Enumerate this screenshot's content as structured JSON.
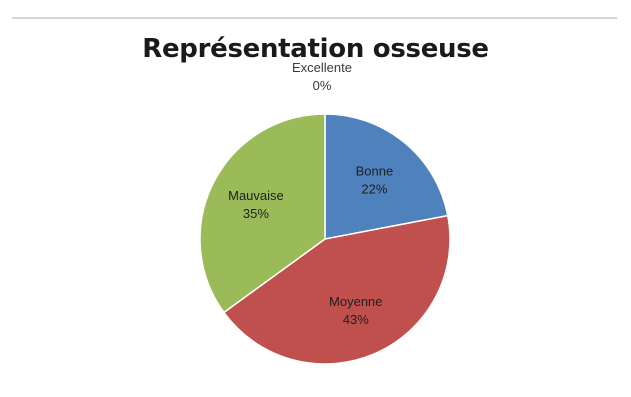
{
  "chart_data": {
    "type": "pie",
    "title": "Représentation osseuse",
    "slices": [
      {
        "label": "Excellente",
        "value_label": "0%",
        "value": 0,
        "color": "#7f7f7f"
      },
      {
        "label": "Bonne",
        "value_label": "22%",
        "value": 22,
        "color": "#4f81bd"
      },
      {
        "label": "Moyenne",
        "value_label": "43%",
        "value": 43,
        "color": "#c0504d"
      },
      {
        "label": "Mauvaise",
        "value_label": "35%",
        "value": 35,
        "color": "#9bbb59"
      }
    ],
    "start_angle_deg": 0,
    "direction": "clockwise",
    "legend": "none",
    "grid": false
  }
}
